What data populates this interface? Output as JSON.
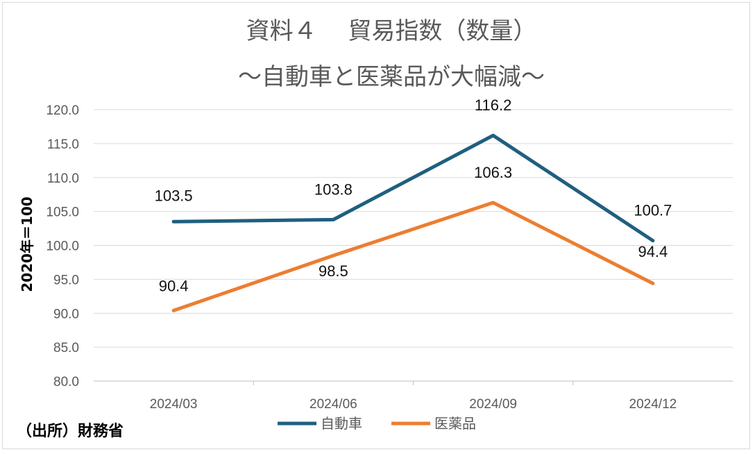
{
  "chart_data": {
    "type": "line",
    "title": "資料４　 貿易指数（数量）",
    "subtitle": "～自動車と医薬品が大幅減～",
    "ylabel": "2020年＝100",
    "xlabel": "",
    "ylim": [
      80,
      120
    ],
    "y_ticks": [
      "80.0",
      "85.0",
      "90.0",
      "95.0",
      "100.0",
      "105.0",
      "110.0",
      "115.0",
      "120.0"
    ],
    "categories": [
      "2024/03",
      "2024/06",
      "2024/09",
      "2024/12"
    ],
    "series": [
      {
        "name": "自動車",
        "values": [
          103.5,
          103.8,
          116.2,
          100.7
        ],
        "labels": [
          "103.5",
          "103.8",
          "116.2",
          "100.7"
        ],
        "color": "#1f5f7f"
      },
      {
        "name": "医薬品",
        "values": [
          90.4,
          98.5,
          106.3,
          94.4
        ],
        "labels": [
          "90.4",
          "98.5",
          "106.3",
          "94.4"
        ],
        "color": "#ed7d31"
      }
    ],
    "grid": true,
    "legend_position": "bottom"
  },
  "source_note": "（出所）財務省"
}
